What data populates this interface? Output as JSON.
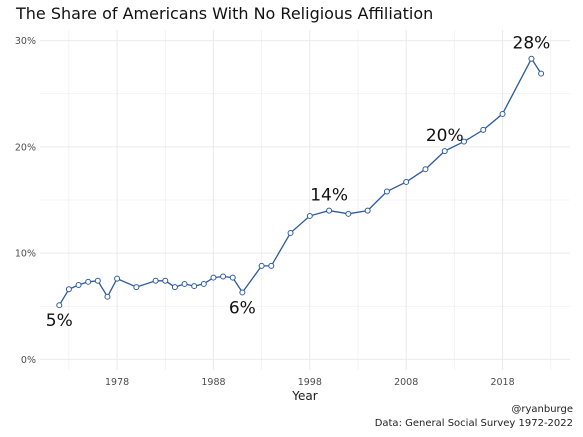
{
  "title": "The Share of Americans With No Religious Affiliation",
  "credit": {
    "handle": "@ryanburge",
    "source": "Data: General Social Survey 1972-2022"
  },
  "colors": {
    "line": "#2c5aa0",
    "point_fill": "#ffffff",
    "grid": "#ebebeb",
    "text": "#4d4d4d"
  },
  "chart_data": {
    "type": "line",
    "title": "The Share of Americans With No Religious Affiliation",
    "xlabel": "Year",
    "ylabel": "",
    "xlim": [
      1970,
      2025
    ],
    "ylim": [
      -0.01,
      0.31
    ],
    "x_ticks": [
      1978,
      1988,
      1998,
      2008,
      2018
    ],
    "x_tick_labels": [
      "1978",
      "1988",
      "1998",
      "2008",
      "2018"
    ],
    "y_ticks": [
      0,
      0.1,
      0.2,
      0.3
    ],
    "y_tick_labels": [
      "0%",
      "10%",
      "20%",
      "30%"
    ],
    "grid": true,
    "series": [
      {
        "x": [
          1972,
          1973,
          1974,
          1975,
          1976,
          1977,
          1978,
          1980,
          1982,
          1983,
          1984,
          1985,
          1986,
          1987,
          1988,
          1989,
          1990,
          1991,
          1993,
          1994,
          1996,
          1998,
          2000,
          2002,
          2004,
          2006,
          2008,
          2010,
          2012,
          2014,
          2016,
          2018,
          2021,
          2022
        ],
        "y": [
          0.051,
          0.066,
          0.07,
          0.073,
          0.074,
          0.059,
          0.076,
          0.068,
          0.074,
          0.074,
          0.068,
          0.071,
          0.069,
          0.071,
          0.077,
          0.078,
          0.077,
          0.063,
          0.088,
          0.088,
          0.119,
          0.135,
          0.14,
          0.137,
          0.14,
          0.158,
          0.167,
          0.179,
          0.196,
          0.205,
          0.216,
          0.231,
          0.283,
          0.269
        ]
      }
    ],
    "annotations": [
      {
        "text": "5%",
        "x": 1972,
        "y": 0.051,
        "placement": "below"
      },
      {
        "text": "6%",
        "x": 1991,
        "y": 0.063,
        "placement": "below"
      },
      {
        "text": "14%",
        "x": 2000,
        "y": 0.14,
        "placement": "above"
      },
      {
        "text": "20%",
        "x": 2012,
        "y": 0.196,
        "placement": "above"
      },
      {
        "text": "28%",
        "x": 2021,
        "y": 0.283,
        "placement": "above"
      }
    ]
  }
}
